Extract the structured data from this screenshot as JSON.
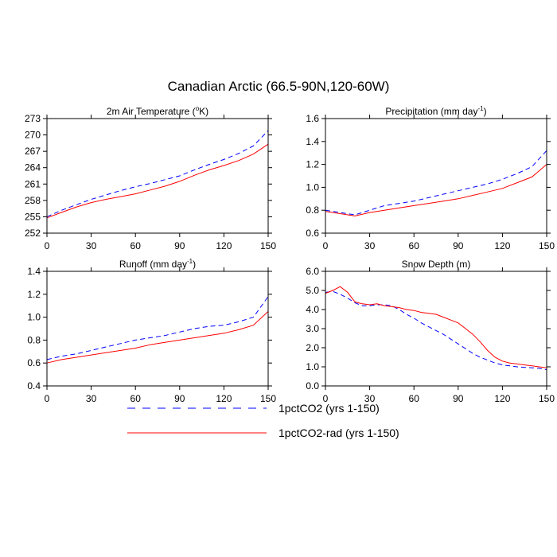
{
  "figure": {
    "title": "Canadian Arctic (66.5-90N,120-60W)"
  },
  "legend": {
    "entries": [
      {
        "label": "1pctCO2 (yrs 1-150)",
        "color": "#0000ff",
        "dash": "dashed"
      },
      {
        "label": "1pctCO2-rad (yrs 1-150)",
        "color": "#ff0000",
        "dash": "solid"
      }
    ]
  },
  "chart_data": [
    {
      "type": "line",
      "title_main": "2m Air Temperature (",
      "title_sup": "o",
      "title_tail": "K)",
      "xlim": [
        0,
        150
      ],
      "xticks": [
        0,
        30,
        60,
        90,
        120,
        150
      ],
      "ylim": [
        252,
        273
      ],
      "yticks": [
        252,
        255,
        258,
        261,
        264,
        267,
        270,
        273
      ],
      "ytick_labels": [
        "252",
        "255",
        "258",
        "261",
        "264",
        "267",
        "270",
        "273"
      ],
      "series": [
        {
          "name": "1pctCO2 (yrs 1-150)",
          "color": "#0000ff",
          "dash": "dashed",
          "x": [
            0,
            10,
            20,
            30,
            40,
            50,
            60,
            70,
            80,
            90,
            100,
            110,
            120,
            130,
            140,
            150
          ],
          "y": [
            255,
            256.2,
            257.2,
            258.2,
            259,
            259.8,
            260.5,
            261.1,
            261.8,
            262.5,
            263.6,
            264.6,
            265.5,
            266.6,
            268,
            270.8
          ]
        },
        {
          "name": "1pctCO2-rad (yrs 1-150)",
          "color": "#ff0000",
          "dash": "solid",
          "x": [
            0,
            10,
            20,
            30,
            40,
            50,
            60,
            70,
            80,
            90,
            100,
            110,
            120,
            130,
            140,
            150
          ],
          "y": [
            254.8,
            255.8,
            256.8,
            257.6,
            258.2,
            258.7,
            259.2,
            259.9,
            260.6,
            261.5,
            262.6,
            263.6,
            264.4,
            265.3,
            266.5,
            268.3
          ]
        }
      ]
    },
    {
      "type": "line",
      "title_main": "Precipitation (mm day",
      "title_sup": "-1",
      "title_tail": ")",
      "xlim": [
        0,
        150
      ],
      "xticks": [
        0,
        30,
        60,
        90,
        120,
        150
      ],
      "ylim": [
        0.6,
        1.6
      ],
      "yticks": [
        0.6,
        0.8,
        1.0,
        1.2,
        1.4,
        1.6
      ],
      "ytick_labels": [
        "0.6",
        "0.8",
        "1.0",
        "1.2",
        "1.4",
        "1.6"
      ],
      "series": [
        {
          "name": "1pctCO2 (yrs 1-150)",
          "color": "#0000ff",
          "dash": "dashed",
          "x": [
            0,
            10,
            20,
            30,
            40,
            50,
            60,
            70,
            80,
            90,
            100,
            110,
            120,
            130,
            140,
            150
          ],
          "y": [
            0.8,
            0.78,
            0.76,
            0.8,
            0.84,
            0.86,
            0.88,
            0.91,
            0.94,
            0.97,
            1.0,
            1.03,
            1.07,
            1.12,
            1.18,
            1.32
          ]
        },
        {
          "name": "1pctCO2-rad (yrs 1-150)",
          "color": "#ff0000",
          "dash": "solid",
          "x": [
            0,
            10,
            20,
            30,
            40,
            50,
            60,
            70,
            80,
            90,
            100,
            110,
            120,
            130,
            140,
            150
          ],
          "y": [
            0.79,
            0.77,
            0.75,
            0.78,
            0.8,
            0.82,
            0.84,
            0.86,
            0.88,
            0.9,
            0.93,
            0.96,
            0.99,
            1.04,
            1.09,
            1.2
          ]
        }
      ]
    },
    {
      "type": "line",
      "title_main": "Runoff (mm day",
      "title_sup": "-1",
      "title_tail": ")",
      "xlim": [
        0,
        150
      ],
      "xticks": [
        0,
        30,
        60,
        90,
        120,
        150
      ],
      "ylim": [
        0.4,
        1.4
      ],
      "yticks": [
        0.4,
        0.6,
        0.8,
        1.0,
        1.2,
        1.4
      ],
      "ytick_labels": [
        "0.4",
        "0.6",
        "0.8",
        "1.0",
        "1.2",
        "1.4"
      ],
      "series": [
        {
          "name": "1pctCO2 (yrs 1-150)",
          "color": "#0000ff",
          "dash": "dashed",
          "x": [
            0,
            10,
            20,
            30,
            40,
            50,
            60,
            70,
            80,
            90,
            100,
            110,
            120,
            130,
            140,
            150
          ],
          "y": [
            0.63,
            0.66,
            0.68,
            0.71,
            0.74,
            0.77,
            0.8,
            0.82,
            0.84,
            0.87,
            0.9,
            0.92,
            0.93,
            0.96,
            1.0,
            1.18
          ]
        },
        {
          "name": "1pctCO2-rad (yrs 1-150)",
          "color": "#ff0000",
          "dash": "solid",
          "x": [
            0,
            10,
            20,
            30,
            40,
            50,
            60,
            70,
            80,
            90,
            100,
            110,
            120,
            130,
            140,
            150
          ],
          "y": [
            0.6,
            0.63,
            0.65,
            0.67,
            0.69,
            0.71,
            0.73,
            0.76,
            0.78,
            0.8,
            0.82,
            0.84,
            0.86,
            0.89,
            0.93,
            1.05
          ]
        }
      ]
    },
    {
      "type": "line",
      "title_main": "Snow Depth (m)",
      "title_sup": "",
      "title_tail": "",
      "xlim": [
        0,
        150
      ],
      "xticks": [
        0,
        30,
        60,
        90,
        120,
        150
      ],
      "ylim": [
        0.0,
        6.0
      ],
      "yticks": [
        0,
        1,
        2,
        3,
        4,
        5,
        6
      ],
      "ytick_labels": [
        "0.0",
        "1.0",
        "2.0",
        "3.0",
        "4.0",
        "5.0",
        "6.0"
      ],
      "series": [
        {
          "name": "1pctCO2 (yrs 1-150)",
          "color": "#0000ff",
          "dash": "dashed",
          "x": [
            0,
            5,
            10,
            15,
            20,
            25,
            30,
            35,
            40,
            45,
            50,
            55,
            60,
            65,
            70,
            75,
            80,
            85,
            90,
            95,
            100,
            105,
            110,
            115,
            120,
            125,
            130,
            135,
            140,
            145,
            150
          ],
          "y": [
            4.9,
            4.95,
            4.8,
            4.6,
            4.35,
            4.2,
            4.2,
            4.25,
            4.25,
            4.2,
            4.0,
            3.75,
            3.55,
            3.3,
            3.1,
            2.9,
            2.7,
            2.45,
            2.2,
            1.95,
            1.7,
            1.5,
            1.35,
            1.2,
            1.1,
            1.05,
            1.0,
            0.97,
            0.95,
            0.92,
            0.85
          ]
        },
        {
          "name": "1pctCO2-rad (yrs 1-150)",
          "color": "#ff0000",
          "dash": "solid",
          "x": [
            0,
            5,
            10,
            15,
            20,
            25,
            30,
            35,
            40,
            45,
            50,
            55,
            60,
            65,
            70,
            75,
            80,
            85,
            90,
            95,
            100,
            105,
            110,
            115,
            120,
            125,
            130,
            135,
            140,
            145,
            150
          ],
          "y": [
            4.85,
            5.0,
            5.2,
            4.9,
            4.4,
            4.3,
            4.25,
            4.3,
            4.2,
            4.15,
            4.1,
            4.0,
            3.95,
            3.85,
            3.8,
            3.75,
            3.6,
            3.45,
            3.3,
            3.0,
            2.7,
            2.3,
            1.85,
            1.5,
            1.3,
            1.2,
            1.15,
            1.1,
            1.05,
            1.0,
            0.95
          ]
        }
      ]
    }
  ]
}
